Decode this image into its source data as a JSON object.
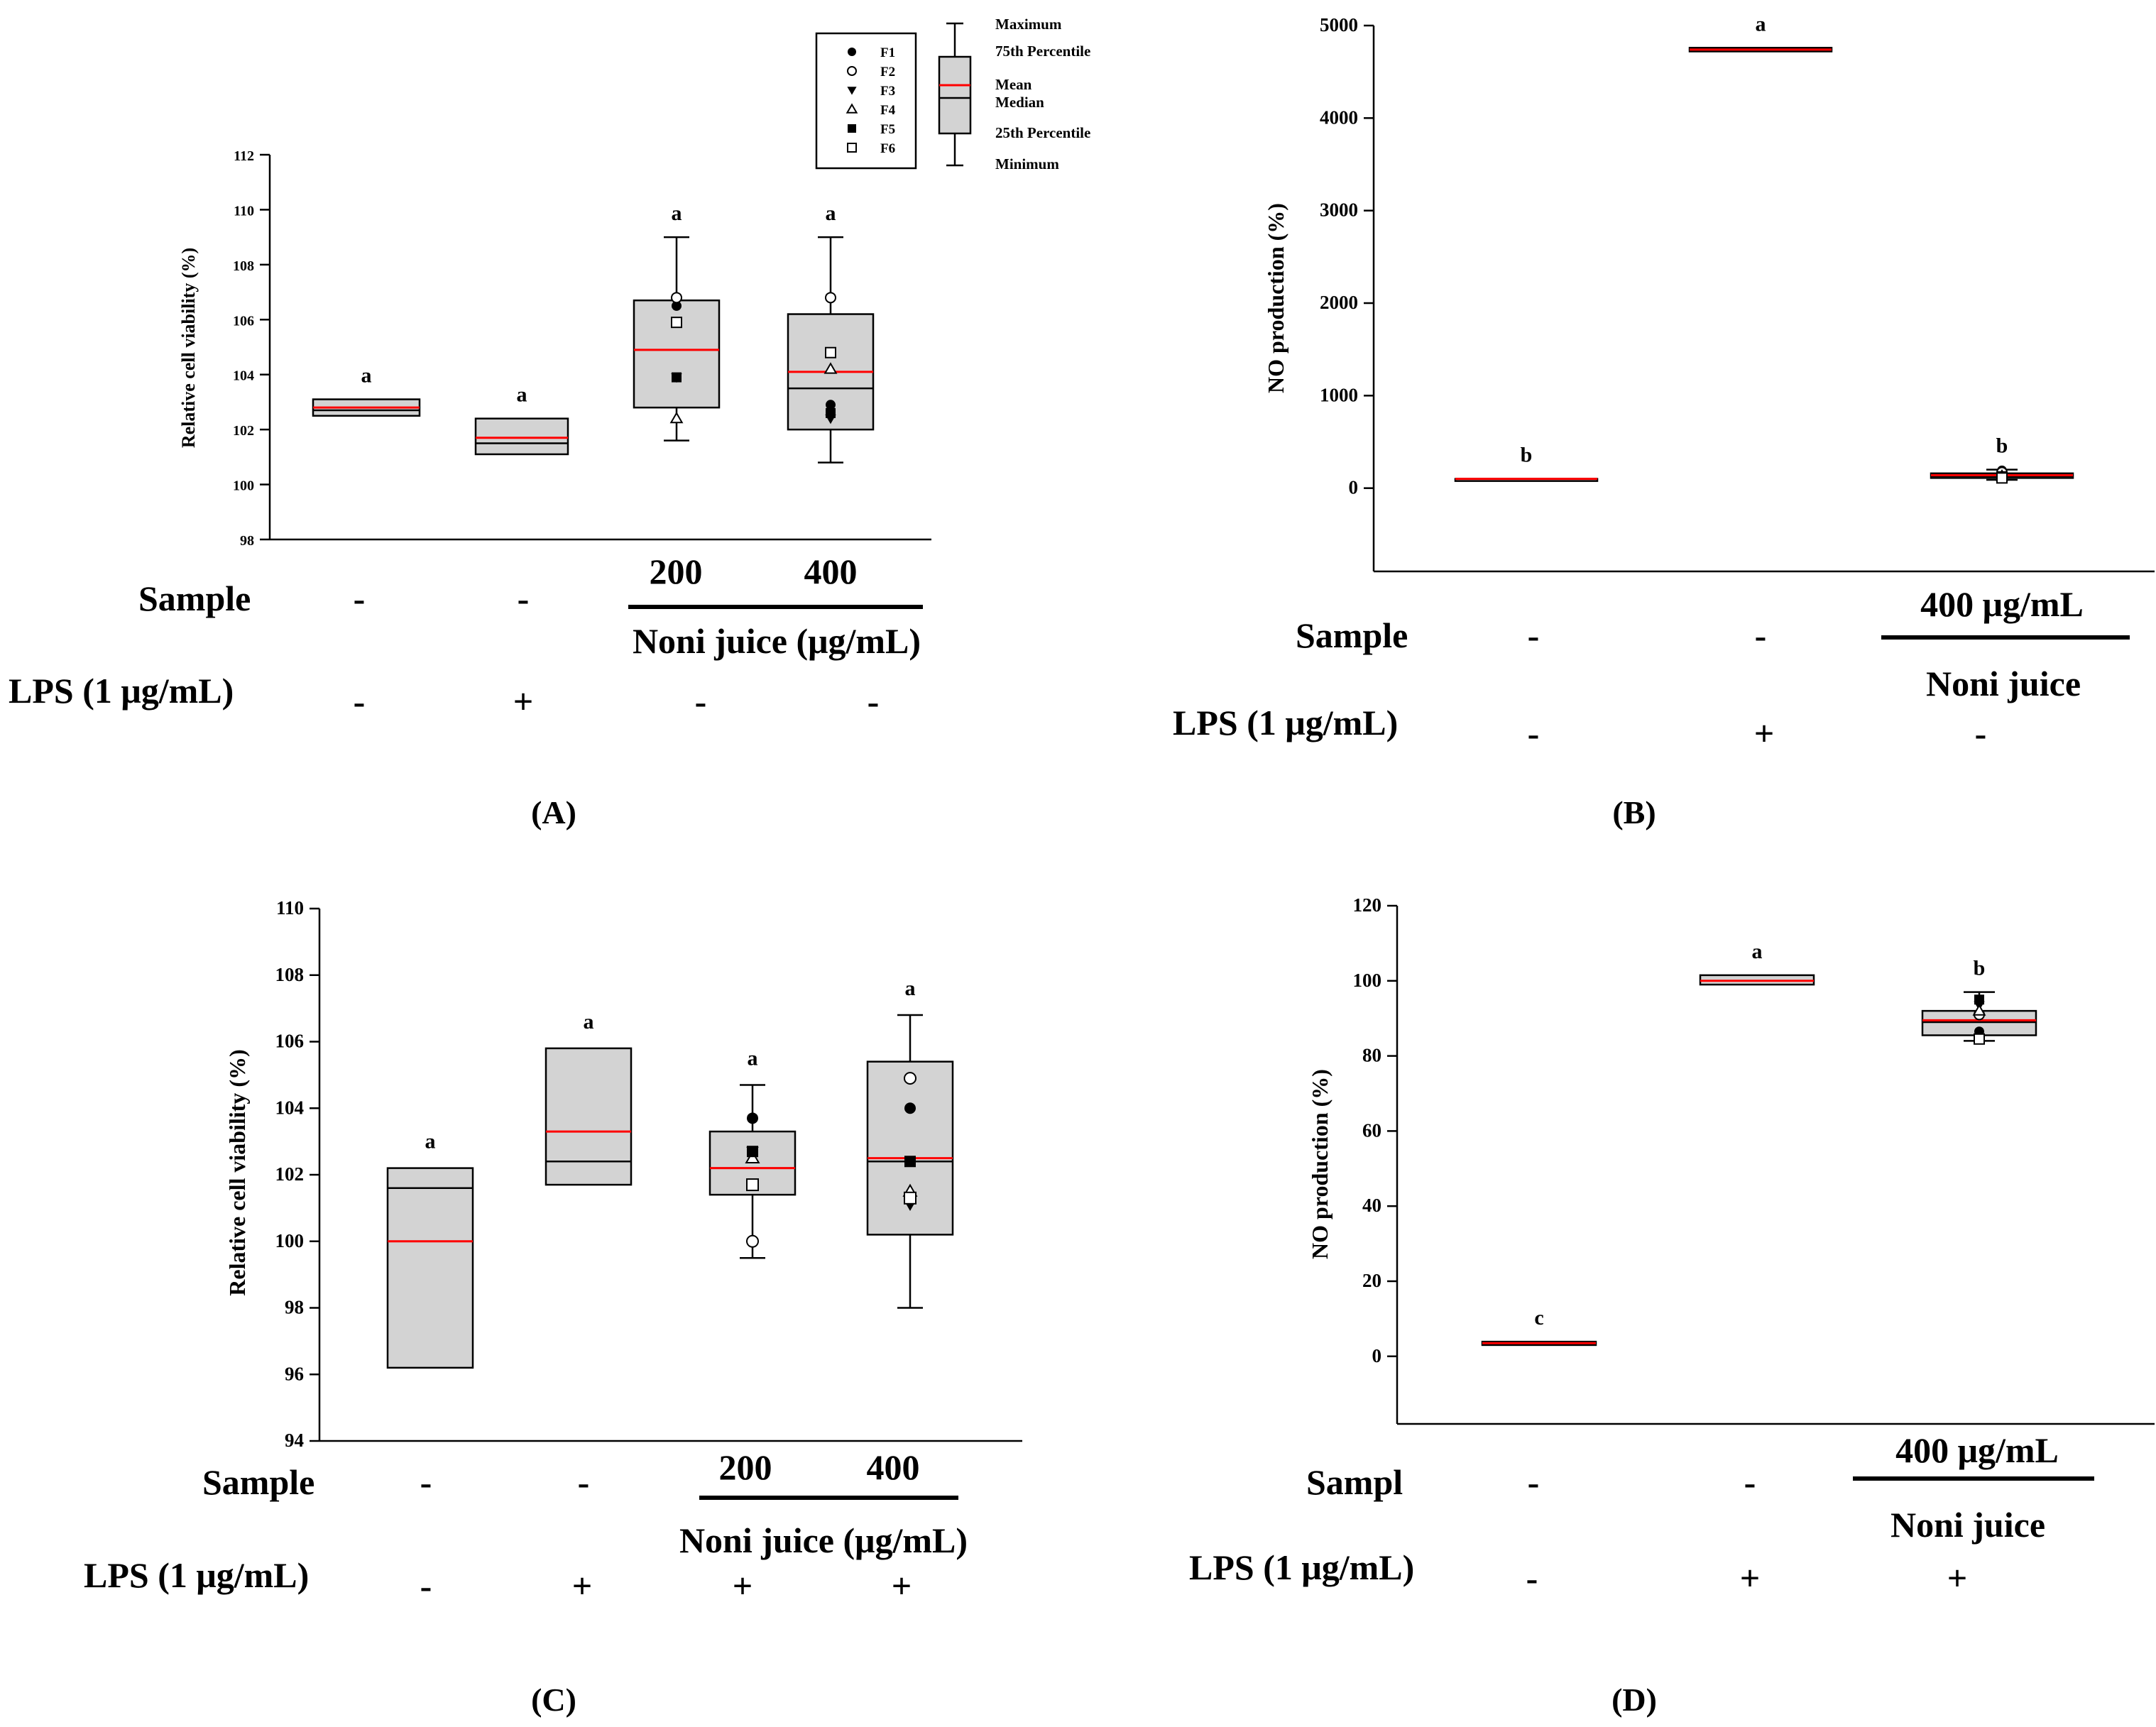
{
  "chart_data": [
    {
      "id": "A",
      "type": "box",
      "panel_label": "(A)",
      "ylabel": "Relative cell viability (%)",
      "ylim": [
        98,
        112
      ],
      "yticks": [
        98,
        100,
        102,
        104,
        106,
        108,
        110,
        112
      ],
      "groups": [
        {
          "letter": "a",
          "q1": 102.5,
          "median": 102.7,
          "mean": 102.8,
          "q3": 103.1,
          "min": null,
          "max": null,
          "points": []
        },
        {
          "letter": "a",
          "q1": 101.1,
          "median": 101.5,
          "mean": 101.7,
          "q3": 102.4,
          "min": null,
          "max": null,
          "points": []
        },
        {
          "letter": "a",
          "q1": 102.8,
          "median": 104.9,
          "mean": 104.9,
          "q3": 106.7,
          "min": 101.6,
          "max": 109.0,
          "points": [
            {
              "m": "F1",
              "v": 106.5
            },
            {
              "m": "F2",
              "v": 106.8
            },
            {
              "m": "F3",
              "v": 103.9
            },
            {
              "m": "F4",
              "v": 102.4
            },
            {
              "m": "F5",
              "v": 103.9
            },
            {
              "m": "F6",
              "v": 105.9
            }
          ]
        },
        {
          "letter": "a",
          "q1": 102.0,
          "median": 103.5,
          "mean": 104.1,
          "q3": 106.2,
          "min": 100.8,
          "max": 109.0,
          "points": [
            {
              "m": "F1",
              "v": 102.9
            },
            {
              "m": "F2",
              "v": 106.8
            },
            {
              "m": "F3",
              "v": 102.4
            },
            {
              "m": "F4",
              "v": 104.2
            },
            {
              "m": "F5",
              "v": 102.6
            },
            {
              "m": "F6",
              "v": 104.8
            }
          ]
        }
      ],
      "conditions": {
        "sample_label": "Sample",
        "sample_values": [
          "-",
          "-",
          "200",
          "400"
        ],
        "group_label": "Noni juice (μg/mL)",
        "lps_label": "LPS (1 μg/mL)",
        "lps_values": [
          "-",
          "+",
          "-",
          "-"
        ]
      }
    },
    {
      "id": "B",
      "type": "box",
      "panel_label": "(B)",
      "ylabel": "NO production (%)",
      "ylim": [
        -900,
        5000
      ],
      "yticks": [
        0,
        1000,
        2000,
        3000,
        4000,
        5000
      ],
      "groups": [
        {
          "letter": "b",
          "q1": 100,
          "median": 100,
          "mean": 100,
          "q3": 100,
          "min": null,
          "max": null,
          "points": []
        },
        {
          "letter": "a",
          "q1": 4720,
          "median": 4740,
          "mean": 4740,
          "q3": 4760,
          "min": null,
          "max": null,
          "points": []
        },
        {
          "letter": "b",
          "q1": 110,
          "median": 130,
          "mean": 140,
          "q3": 160,
          "min": 90,
          "max": 200,
          "points": [
            {
              "m": "F1",
              "v": 190
            },
            {
              "m": "F2",
              "v": 170
            },
            {
              "m": "F3",
              "v": 140
            },
            {
              "m": "F4",
              "v": 130
            },
            {
              "m": "F5",
              "v": 120
            },
            {
              "m": "F6",
              "v": 110
            }
          ]
        }
      ],
      "conditions": {
        "sample_label": "Sample",
        "sample_values": [
          "-",
          "-",
          "400 μg/mL"
        ],
        "group_label": "Noni juice",
        "lps_label": "LPS (1 μg/mL)",
        "lps_values": [
          "-",
          "+",
          "-"
        ]
      }
    },
    {
      "id": "C",
      "type": "box",
      "panel_label": "(C)",
      "ylabel": "Relative cell viability (%)",
      "ylim": [
        94,
        110
      ],
      "yticks": [
        94,
        96,
        98,
        100,
        102,
        104,
        106,
        108,
        110
      ],
      "groups": [
        {
          "letter": "a",
          "q1": 96.2,
          "median": 101.6,
          "mean": 100.0,
          "q3": 102.2,
          "min": null,
          "max": null,
          "points": []
        },
        {
          "letter": "a",
          "q1": 101.7,
          "median": 102.4,
          "mean": 103.3,
          "q3": 105.8,
          "min": null,
          "max": null,
          "points": []
        },
        {
          "letter": "a",
          "q1": 101.4,
          "median": 102.2,
          "mean": 102.2,
          "q3": 103.3,
          "min": 99.5,
          "max": 104.7,
          "points": [
            {
              "m": "F1",
              "v": 103.7
            },
            {
              "m": "F2",
              "v": 100.0
            },
            {
              "m": "F3",
              "v": 102.7
            },
            {
              "m": "F4",
              "v": 102.5
            },
            {
              "m": "F5",
              "v": 102.7
            },
            {
              "m": "F6",
              "v": 101.7
            }
          ]
        },
        {
          "letter": "a",
          "q1": 100.2,
          "median": 102.4,
          "mean": 102.5,
          "q3": 105.4,
          "min": 98.0,
          "max": 106.8,
          "points": [
            {
              "m": "F1",
              "v": 104.0
            },
            {
              "m": "F2",
              "v": 104.9
            },
            {
              "m": "F3",
              "v": 101.1
            },
            {
              "m": "F4",
              "v": 101.5
            },
            {
              "m": "F5",
              "v": 102.4
            },
            {
              "m": "F6",
              "v": 101.3
            }
          ]
        }
      ],
      "conditions": {
        "sample_label": "Sample",
        "sample_values": [
          "-",
          "-",
          "200",
          "400"
        ],
        "group_label": "Noni juice (μg/mL)",
        "lps_label": "LPS (1 μg/mL)",
        "lps_values": [
          "-",
          "+",
          "+",
          "+"
        ]
      }
    },
    {
      "id": "D",
      "type": "box",
      "panel_label": "(D)",
      "ylabel": "NO production (%)",
      "ylim": [
        -18,
        120
      ],
      "yticks": [
        0,
        20,
        40,
        60,
        80,
        100,
        120
      ],
      "groups": [
        {
          "letter": "c",
          "q1": 3.0,
          "median": 3.3,
          "mean": 3.5,
          "q3": 3.9,
          "min": null,
          "max": null,
          "points": []
        },
        {
          "letter": "a",
          "q1": 99.0,
          "median": 100.0,
          "mean": 100.0,
          "q3": 101.5,
          "min": null,
          "max": null,
          "points": []
        },
        {
          "letter": "b",
          "q1": 85.5,
          "median": 89.0,
          "mean": 89.5,
          "q3": 92.0,
          "min": 84.0,
          "max": 97.0,
          "points": [
            {
              "m": "F1",
              "v": 86.5
            },
            {
              "m": "F2",
              "v": 91.0
            },
            {
              "m": "F3",
              "v": 93.5
            },
            {
              "m": "F4",
              "v": 92.0
            },
            {
              "m": "F5",
              "v": 95.0
            },
            {
              "m": "F6",
              "v": 84.5
            }
          ]
        }
      ],
      "conditions": {
        "sample_label": "Sampl",
        "sample_values": [
          "-",
          "-",
          "400 μg/mL"
        ],
        "group_label": "Noni juice",
        "lps_label": "LPS (1 μg/mL)",
        "lps_values": [
          "-",
          "+",
          "+"
        ]
      }
    }
  ],
  "legend": {
    "markers": [
      "F1",
      "F2",
      "F3",
      "F4",
      "F5",
      "F6"
    ],
    "maximum": "Maximum",
    "p75": "75th Percentile",
    "mean": "Mean",
    "median": "Median",
    "p25": "25th Percentile",
    "minimum": "Minimum"
  },
  "colors": {
    "box_fill": "#d3d3d3",
    "mean_line": "#ff0000",
    "axis": "#000000"
  }
}
